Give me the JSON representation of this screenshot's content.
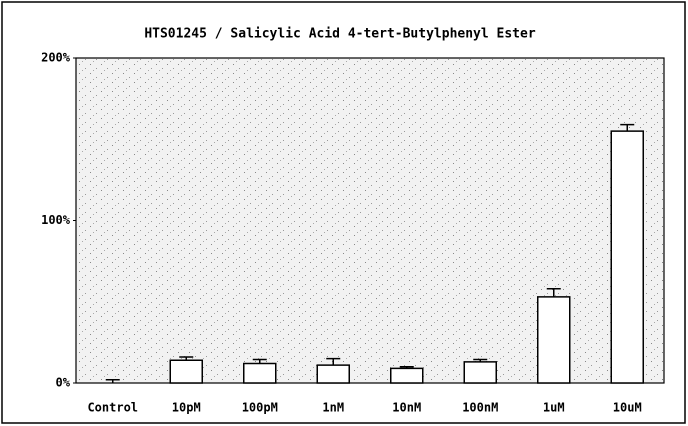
{
  "chart_data": {
    "type": "bar",
    "title": "HTS01245 / Salicylic Acid 4-tert-Butylphenyl Ester",
    "categories": [
      "Control",
      "10pM",
      "100pM",
      "1nM",
      "10nM",
      "100nM",
      "1uM",
      "10uM"
    ],
    "series": [
      {
        "color": "#ffffff",
        "values": [
          0,
          14,
          12,
          11,
          9,
          13,
          53,
          155
        ],
        "errors": [
          2,
          2,
          2.5,
          4,
          1,
          1.5,
          5,
          4
        ]
      }
    ],
    "ylim": [
      0,
      200
    ],
    "yticks": [
      {
        "value": 0,
        "label": "0%"
      },
      {
        "value": 100,
        "label": "100%"
      },
      {
        "value": 200,
        "label": "200%"
      }
    ]
  }
}
